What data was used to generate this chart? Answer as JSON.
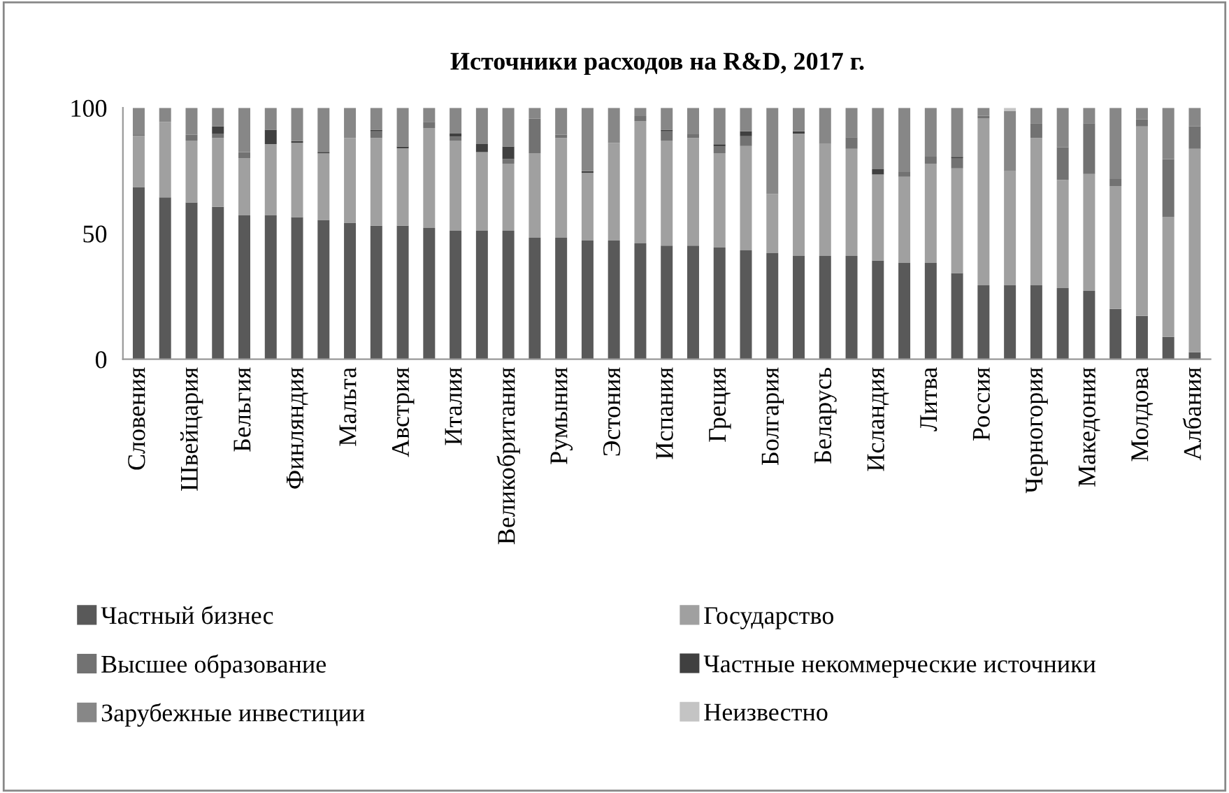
{
  "chart_data": {
    "type": "bar",
    "stacked": true,
    "title": "Источники расходов на R&D, 2017 г.",
    "categories": [
      "Словения",
      null,
      "Швейцария",
      null,
      "Бельгия",
      null,
      "Финляндия",
      null,
      "Мальта",
      null,
      "Австрия",
      null,
      "Италия",
      null,
      "Великобритания",
      null,
      "Румыния",
      null,
      "Эстония",
      null,
      "Испания",
      null,
      "Греция",
      null,
      "Болгария",
      null,
      "Беларусь",
      null,
      "Исландия",
      null,
      "Литва",
      null,
      "Россия",
      null,
      "Черногория",
      null,
      "Македония",
      null,
      "Молдова",
      null,
      "Албания"
    ],
    "series": [
      {
        "name": "Частный бизнес",
        "color": "#595959",
        "values": [
          68.5,
          64.4,
          62.4,
          60.6,
          57.2,
          57.2,
          56.5,
          55.4,
          54.3,
          53.1,
          53.1,
          52.2,
          51.1,
          51.1,
          51.1,
          48.3,
          48.3,
          47.2,
          47.2,
          46.1,
          45.2,
          45.2,
          44.4,
          43.3,
          42.2,
          41.1,
          41.1,
          41.1,
          39.3,
          38.3,
          38.3,
          34.3,
          29.4,
          29.4,
          29.4,
          28.3,
          27.2,
          20.0,
          17.2,
          8.9,
          2.8
        ]
      },
      {
        "name": "Государство",
        "color": "#a0a0a0",
        "values": [
          20.4,
          30.0,
          24.6,
          27.4,
          22.8,
          28.4,
          29.6,
          26.5,
          33.7,
          34.9,
          30.8,
          39.8,
          35.9,
          31.3,
          26.7,
          33.7,
          39.7,
          26.9,
          38.9,
          48.7,
          41.8,
          42.8,
          37.6,
          41.5,
          23.5,
          48.7,
          44.6,
          42.6,
          34.2,
          34.3,
          39.5,
          41.6,
          66.5,
          45.4,
          58.6,
          43.0,
          46.5,
          48.9,
          75.4,
          47.6,
          80.9
        ]
      },
      {
        "name": "Высшее образование",
        "color": "#727272",
        "values": [
          0.3,
          null,
          2.3,
          1.8,
          2.4,
          null,
          null,
          null,
          null,
          2.7,
          null,
          2.4,
          1.5,
          null,
          1.8,
          13.7,
          1.3,
          null,
          null,
          1.9,
          3.7,
          1.5,
          2.6,
          3.9,
          null,
          null,
          null,
          4.6,
          null,
          1.9,
          2.8,
          4.1,
          0.9,
          null,
          5.9,
          13.0,
          20.2,
          2.8,
          2.8,
          23.1,
          8.9
        ]
      },
      {
        "name": "Частные некоммерческие источники",
        "color": "#404040",
        "values": [
          null,
          null,
          null,
          2.8,
          null,
          5.7,
          0.7,
          0.6,
          null,
          0.6,
          0.7,
          null,
          1.3,
          3.2,
          5.0,
          null,
          null,
          0.7,
          null,
          null,
          0.6,
          null,
          0.9,
          2.0,
          null,
          0.9,
          null,
          null,
          2.1,
          null,
          null,
          0.5,
          null,
          null,
          null,
          null,
          null,
          null,
          null,
          null,
          null
        ]
      },
      {
        "name": "Зарубежные инвестиции",
        "color": "#878787",
        "values": [
          10.8,
          5.6,
          10.7,
          7.4,
          17.6,
          8.7,
          13.2,
          17.5,
          12.0,
          8.7,
          15.4,
          5.6,
          10.2,
          14.4,
          15.4,
          4.3,
          10.7,
          25.2,
          13.9,
          3.3,
          8.7,
          10.5,
          14.5,
          9.3,
          34.3,
          9.3,
          14.3,
          11.7,
          24.4,
          25.5,
          19.4,
          19.5,
          3.2,
          23.9,
          6.1,
          15.7,
          6.1,
          28.3,
          4.6,
          20.4,
          7.4
        ]
      },
      {
        "name": "Неизвестно",
        "color": "#c4c4c4",
        "values": [
          null,
          null,
          null,
          null,
          null,
          null,
          null,
          null,
          null,
          null,
          null,
          null,
          null,
          null,
          null,
          null,
          null,
          null,
          null,
          null,
          null,
          null,
          null,
          null,
          null,
          null,
          null,
          null,
          null,
          null,
          null,
          null,
          null,
          1.3,
          null,
          null,
          null,
          null,
          null,
          null,
          null
        ]
      }
    ],
    "ylim": [
      0,
      100
    ],
    "yticks": [
      0,
      50,
      100
    ],
    "legend": "bottom"
  }
}
